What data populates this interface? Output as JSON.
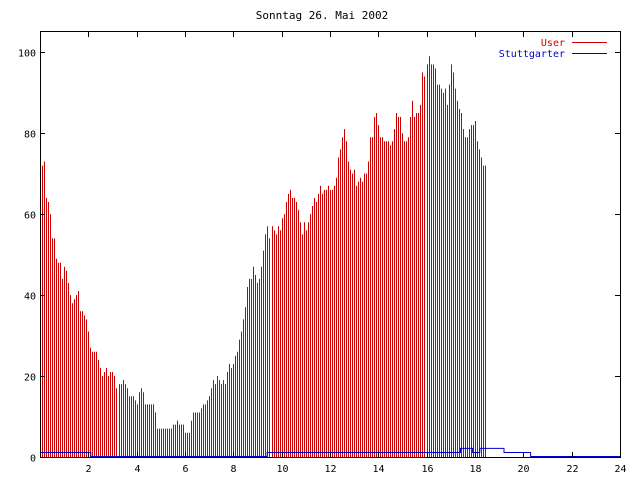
{
  "chart_data": {
    "type": "bar",
    "title": "Sonntag 26. Mai 2002",
    "xlabel": "",
    "ylabel": "",
    "xlim": [
      0,
      24
    ],
    "ylim": [
      0,
      105
    ],
    "x_ticks": [
      "2",
      "4",
      "6",
      "8",
      "10",
      "12",
      "14",
      "16",
      "18",
      "20",
      "22",
      "24"
    ],
    "y_ticks": [
      "0",
      "20",
      "40",
      "60",
      "80",
      "100"
    ],
    "grid": false,
    "legend": "top-right",
    "colors": {
      "User": "#cc0000",
      "Stuttgarter": "#0000cc"
    },
    "series": [
      {
        "name": "User",
        "style": "impulses",
        "x_start": 0,
        "x_step": 0.0833,
        "values": [
          73,
          72,
          73,
          64,
          63,
          60,
          54,
          54,
          49,
          48,
          48,
          44,
          47,
          46,
          43,
          40,
          38,
          39,
          40,
          41,
          36,
          36,
          35,
          34,
          31,
          27,
          26,
          26,
          26,
          24,
          22,
          20,
          21,
          22,
          20,
          21,
          21,
          20,
          17,
          18,
          18,
          19,
          18,
          17,
          15,
          15,
          15,
          14,
          13,
          16,
          17,
          16,
          13,
          13,
          13,
          13,
          13,
          11,
          7,
          7,
          7,
          7,
          7,
          7,
          7,
          7,
          8,
          8,
          9,
          8,
          8,
          8,
          6,
          6,
          6,
          9,
          11,
          11,
          11,
          11,
          12,
          13,
          13,
          14,
          15,
          17,
          19,
          18,
          20,
          19,
          18,
          19,
          18,
          21,
          23,
          22,
          23,
          25,
          26,
          29,
          31,
          34,
          37,
          42,
          44,
          44,
          47,
          45,
          43,
          44,
          47,
          51,
          55,
          57,
          54,
          57,
          56,
          55,
          57,
          56,
          59,
          60,
          63,
          65,
          66,
          64,
          64,
          63,
          61,
          58,
          55,
          58,
          56,
          58,
          60,
          62,
          64,
          63,
          65,
          67,
          65,
          66,
          66,
          67,
          66,
          66,
          67,
          69,
          74,
          76,
          79,
          81,
          78,
          73,
          71,
          70,
          71,
          67,
          68,
          69,
          68,
          70,
          70,
          73,
          79,
          79,
          84,
          85,
          82,
          79,
          79,
          78,
          78,
          78,
          77,
          78,
          81,
          85,
          84,
          84,
          80,
          78,
          78,
          79,
          84,
          88,
          84,
          85,
          85,
          87,
          95,
          94,
          97,
          99,
          97,
          97,
          96,
          92,
          92,
          91,
          90,
          91,
          87,
          92,
          97,
          95,
          91,
          88,
          86,
          85,
          81,
          79,
          79,
          81,
          82,
          82,
          83,
          78,
          76,
          74,
          72,
          72
        ]
      },
      {
        "name": "Stuttgarter",
        "style": "line",
        "points": [
          [
            0,
            1
          ],
          [
            2.1,
            1
          ],
          [
            2.1,
            0
          ],
          [
            9.4,
            0
          ],
          [
            9.4,
            1
          ],
          [
            17.4,
            1
          ],
          [
            17.4,
            2
          ],
          [
            17.9,
            2
          ],
          [
            17.9,
            1
          ],
          [
            18.2,
            1
          ],
          [
            18.2,
            2
          ],
          [
            19.2,
            2
          ],
          [
            19.2,
            1
          ],
          [
            20.3,
            1
          ],
          [
            20.3,
            0
          ],
          [
            24,
            0
          ]
        ]
      }
    ]
  }
}
